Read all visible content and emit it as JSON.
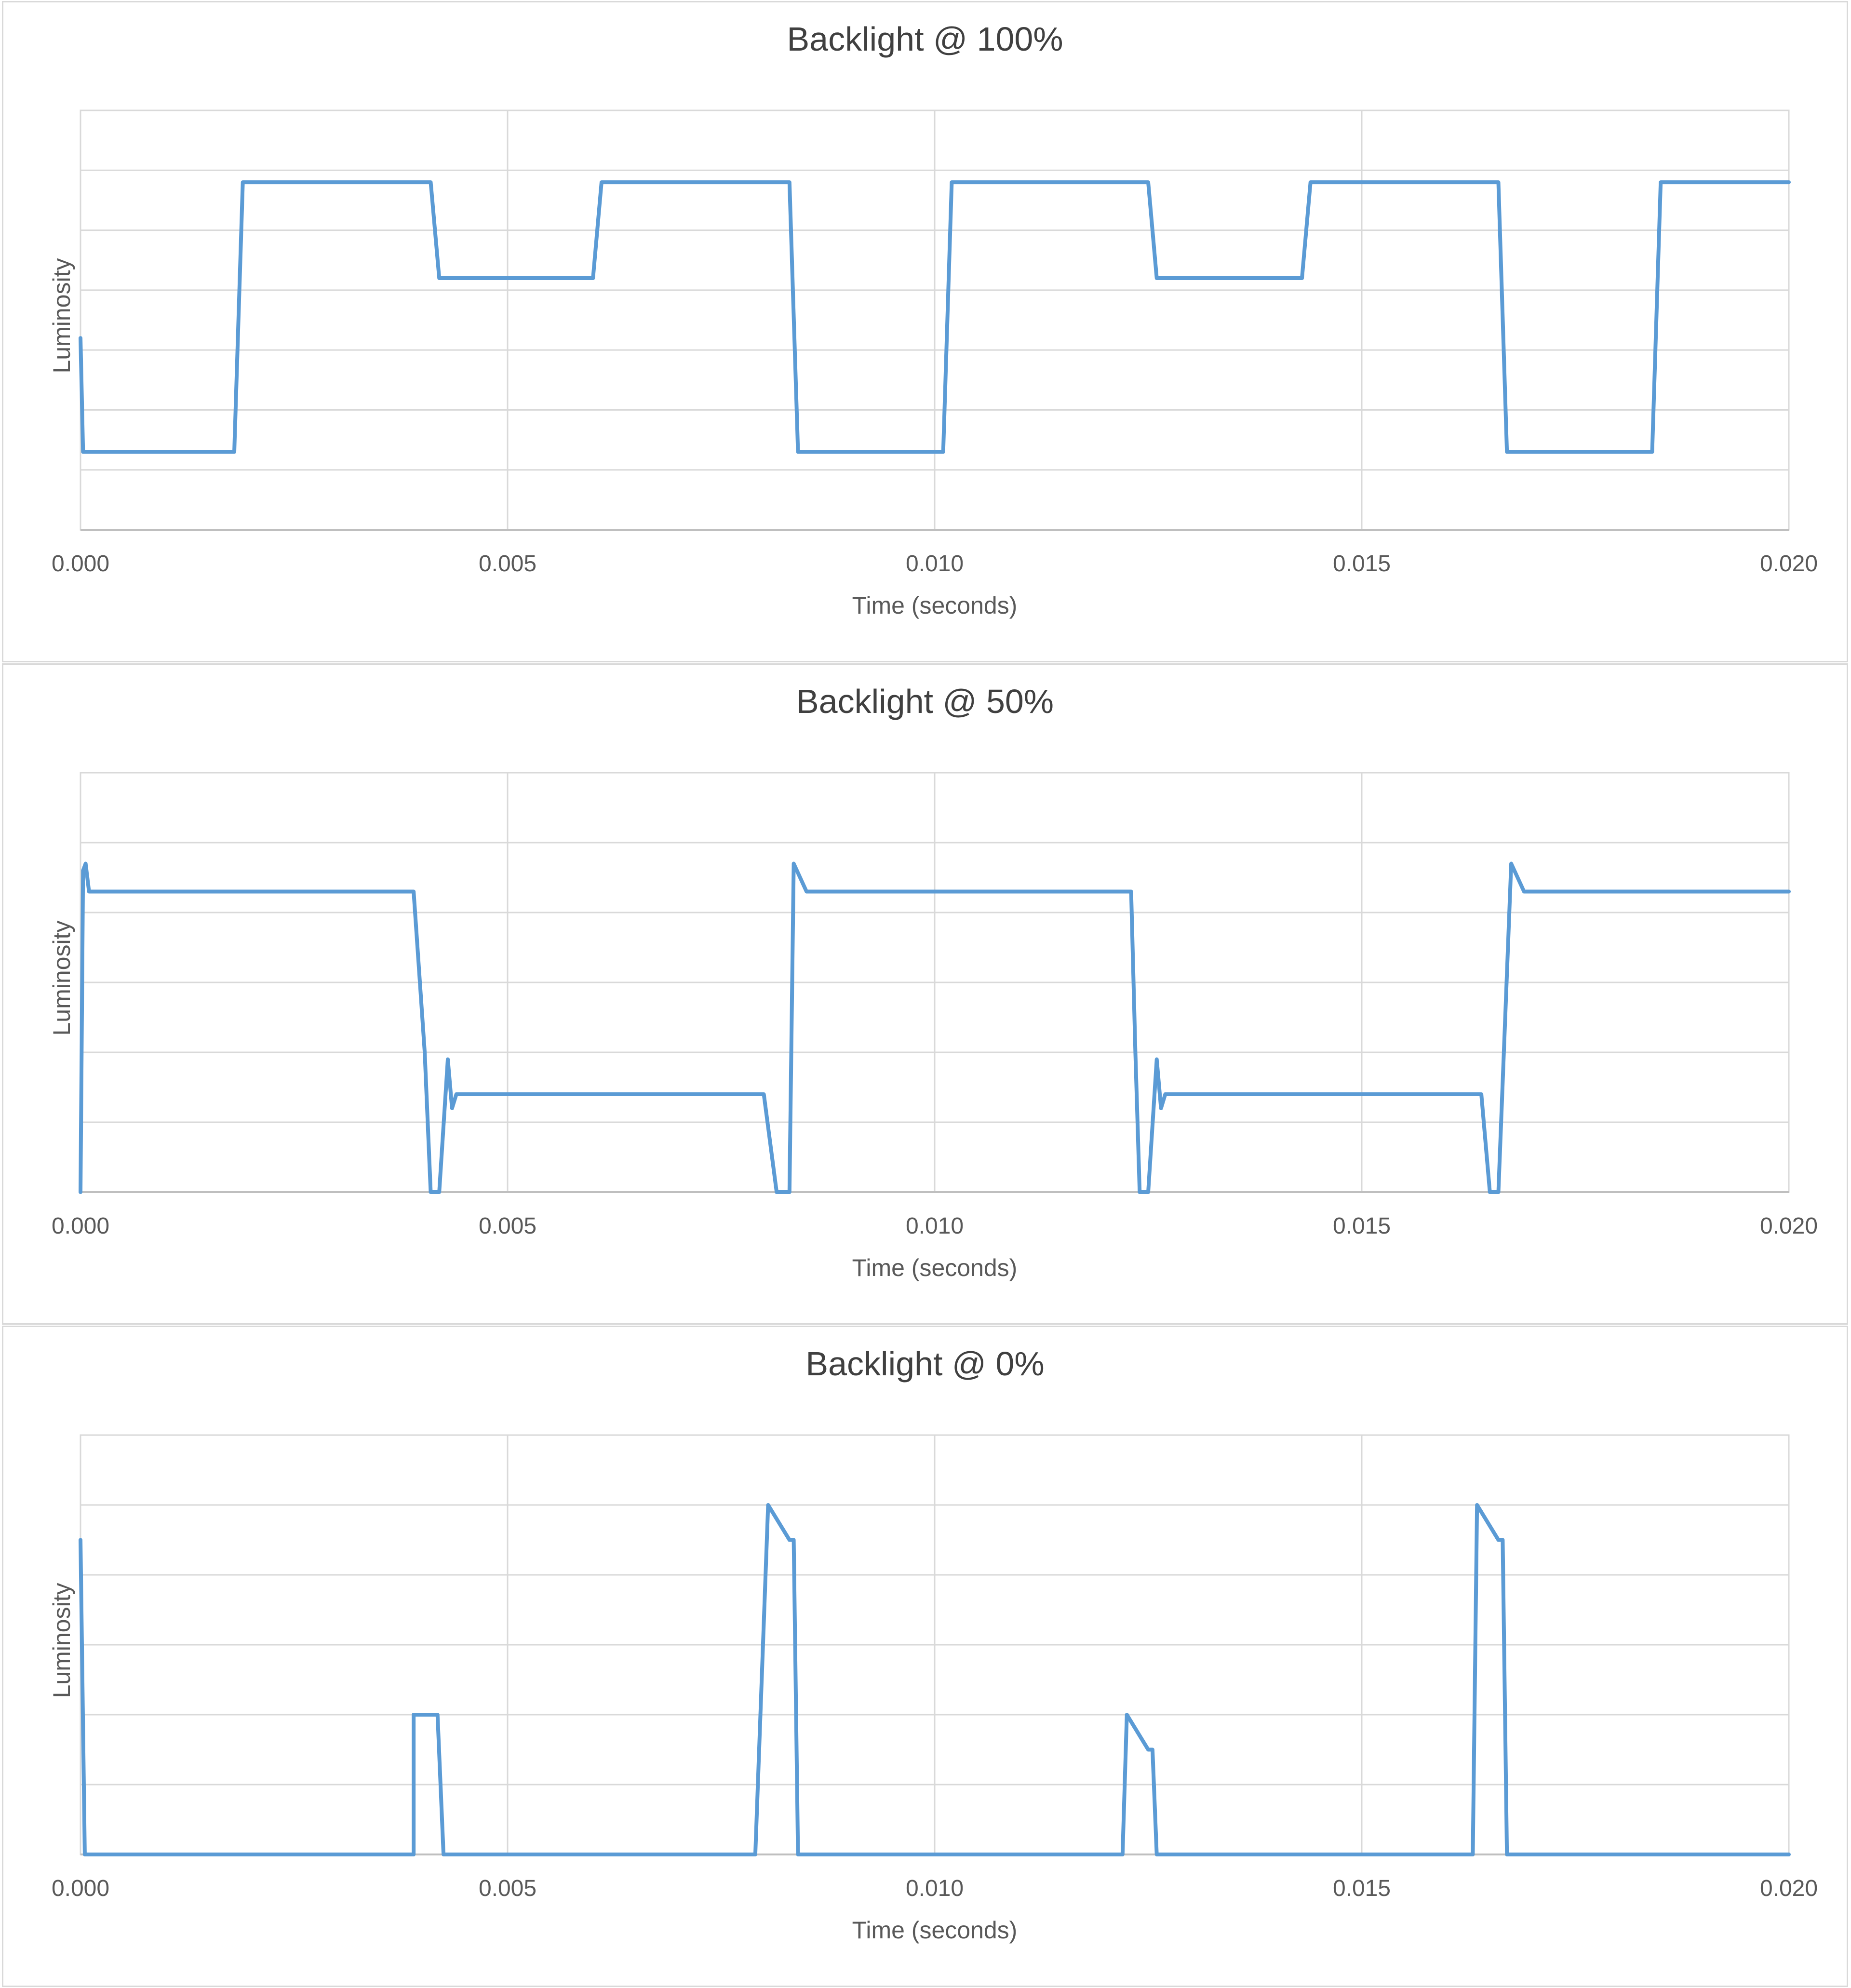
{
  "style": {
    "line_color": "#5b9bd5",
    "grid_color": "#d9d9d9",
    "axis_text_color": "#595959",
    "title_color": "#404040"
  },
  "chart_data": [
    {
      "type": "line",
      "title": "Backlight @ 100%",
      "xlabel": "Time (seconds)",
      "ylabel": "Luminosity",
      "x_ticks": [
        "0.000",
        "0.005",
        "0.010",
        "0.015",
        "0.020"
      ],
      "xlim": [
        0,
        0.02
      ],
      "ylim": [
        0,
        7
      ],
      "y_gridlines": 7,
      "grid": true,
      "y_tick_labels": false,
      "series": [
        {
          "points": [
            [
              0,
              3.2
            ],
            [
              3e-05,
              1.3
            ],
            [
              5e-05,
              1.3
            ],
            [
              0.0018,
              1.3
            ],
            [
              0.0019,
              5.8
            ],
            [
              0.0041,
              5.8
            ],
            [
              0.0042,
              4.2
            ],
            [
              0.006,
              4.2
            ],
            [
              0.0061,
              5.8
            ],
            [
              0.0083,
              5.8
            ],
            [
              0.0084,
              1.3
            ],
            [
              0.0101,
              1.3
            ],
            [
              0.0102,
              5.8
            ],
            [
              0.0125,
              5.8
            ],
            [
              0.0126,
              4.2
            ],
            [
              0.0143,
              4.2
            ],
            [
              0.0144,
              5.8
            ],
            [
              0.0166,
              5.8
            ],
            [
              0.0167,
              1.3
            ],
            [
              0.0184,
              1.3
            ],
            [
              0.0185,
              5.8
            ],
            [
              0.02,
              5.8
            ]
          ]
        }
      ]
    },
    {
      "type": "line",
      "title": "Backlight @ 50%",
      "xlabel": "Time (seconds)",
      "ylabel": "Luminosity",
      "x_ticks": [
        "0.000",
        "0.005",
        "0.010",
        "0.015",
        "0.020"
      ],
      "xlim": [
        0,
        0.02
      ],
      "ylim": [
        0,
        6
      ],
      "y_gridlines": 6,
      "grid": true,
      "y_tick_labels": false,
      "series": [
        {
          "points": [
            [
              0,
              0
            ],
            [
              3e-05,
              4.6
            ],
            [
              6e-05,
              4.7
            ],
            [
              0.0001,
              4.3
            ],
            [
              0.0039,
              4.3
            ],
            [
              0.00403,
              2.0
            ],
            [
              0.0041,
              0
            ],
            [
              0.0042,
              0
            ],
            [
              0.0043,
              1.9
            ],
            [
              0.00435,
              1.2
            ],
            [
              0.0044,
              1.4
            ],
            [
              0.008,
              1.4
            ],
            [
              0.00815,
              0
            ],
            [
              0.0083,
              0
            ],
            [
              0.00835,
              4.7
            ],
            [
              0.0085,
              4.3
            ],
            [
              0.0123,
              4.3
            ],
            [
              0.01235,
              2.0
            ],
            [
              0.0124,
              0
            ],
            [
              0.0125,
              0
            ],
            [
              0.0126,
              1.9
            ],
            [
              0.01265,
              1.2
            ],
            [
              0.0127,
              1.4
            ],
            [
              0.0164,
              1.4
            ],
            [
              0.0165,
              0
            ],
            [
              0.0166,
              0
            ],
            [
              0.01675,
              4.7
            ],
            [
              0.0169,
              4.3
            ],
            [
              0.02,
              4.3
            ]
          ]
        }
      ]
    },
    {
      "type": "line",
      "title": "Backlight @ 0%",
      "xlabel": "Time (seconds)",
      "ylabel": "Luminosity",
      "x_ticks": [
        "0.000",
        "0.005",
        "0.010",
        "0.015",
        "0.020"
      ],
      "xlim": [
        0,
        0.02
      ],
      "ylim": [
        0,
        6
      ],
      "y_gridlines": 6,
      "grid": true,
      "y_tick_labels": false,
      "series": [
        {
          "points": [
            [
              0,
              4.5
            ],
            [
              5e-05,
              0
            ],
            [
              0.0039,
              0
            ],
            [
              0.0039,
              2.0
            ],
            [
              0.00418,
              2.0
            ],
            [
              0.00425,
              0
            ],
            [
              0.0079,
              0
            ],
            [
              0.00805,
              5.0
            ],
            [
              0.0083,
              4.5
            ],
            [
              0.00835,
              4.5
            ],
            [
              0.0084,
              0
            ],
            [
              0.0122,
              0
            ],
            [
              0.01225,
              2.0
            ],
            [
              0.0125,
              1.5
            ],
            [
              0.01255,
              1.5
            ],
            [
              0.0126,
              0
            ],
            [
              0.0163,
              0
            ],
            [
              0.01635,
              5.0
            ],
            [
              0.0166,
              4.5
            ],
            [
              0.01665,
              4.5
            ],
            [
              0.0167,
              0
            ],
            [
              0.02,
              0
            ]
          ]
        }
      ]
    }
  ]
}
